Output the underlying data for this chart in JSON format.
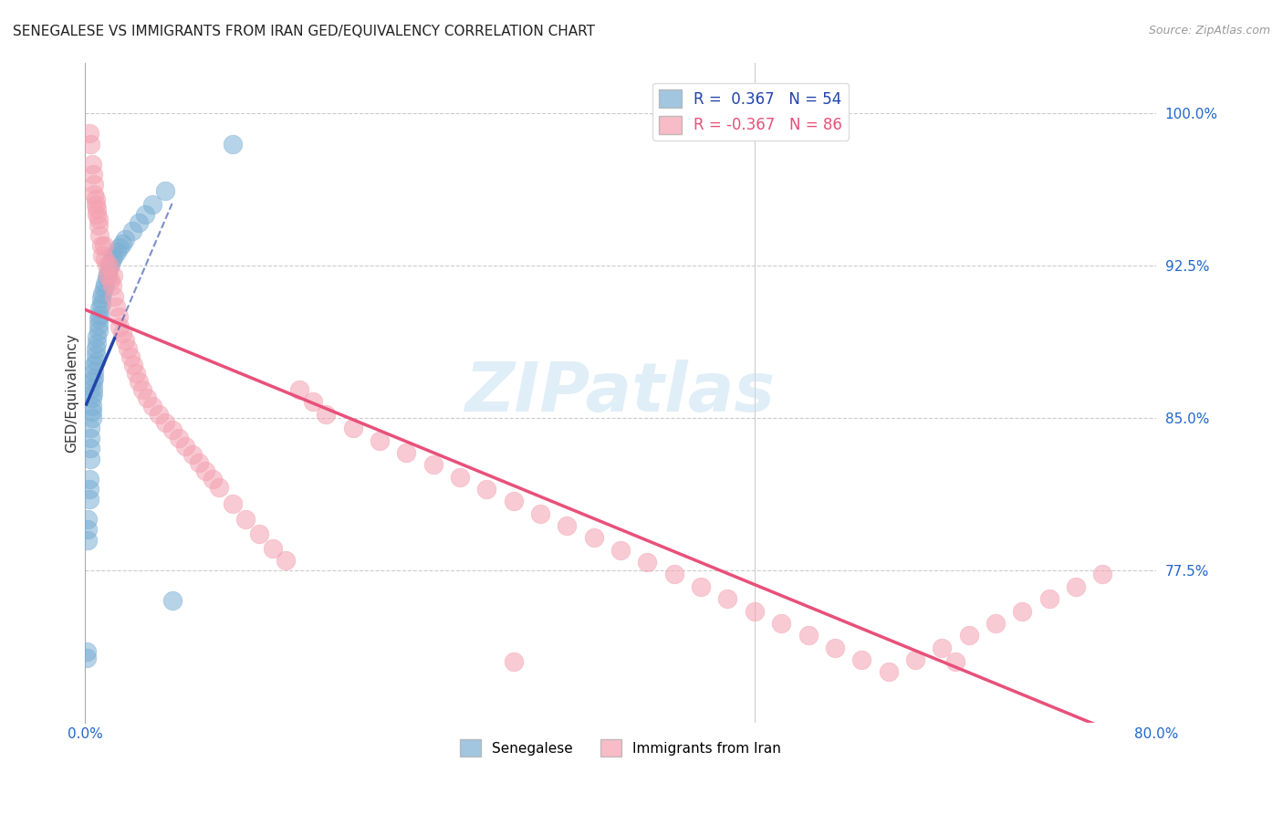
{
  "title": "SENEGALESE VS IMMIGRANTS FROM IRAN GED/EQUIVALENCY CORRELATION CHART",
  "source": "Source: ZipAtlas.com",
  "xlabel_bottom": "Senegalese",
  "xlabel_right_label": "Immigrants from Iran",
  "ylabel": "GED/Equivalency",
  "y_ticks": [
    0.775,
    0.85,
    0.925,
    1.0
  ],
  "y_tick_labels": [
    "77.5%",
    "85.0%",
    "92.5%",
    "100.0%"
  ],
  "x_ticks": [
    0.0,
    0.1,
    0.2,
    0.3,
    0.4,
    0.5,
    0.6,
    0.7,
    0.8
  ],
  "x_tick_labels": [
    "0.0%",
    "",
    "",
    "",
    "",
    "",
    "",
    "",
    "80.0%"
  ],
  "legend_r1": "R =  0.367",
  "legend_n1": "N = 54",
  "legend_r2": "R = -0.367",
  "legend_n2": "N = 86",
  "blue_color": "#7BAFD4",
  "pink_color": "#F4A0B0",
  "blue_line_color": "#2244AA",
  "pink_line_color": "#E8507A",
  "watermark": "ZIPatlas",
  "blue_scatter_x": [
    0.001,
    0.001,
    0.002,
    0.002,
    0.002,
    0.003,
    0.003,
    0.003,
    0.004,
    0.004,
    0.004,
    0.004,
    0.005,
    0.005,
    0.005,
    0.005,
    0.006,
    0.006,
    0.006,
    0.007,
    0.007,
    0.007,
    0.008,
    0.008,
    0.008,
    0.009,
    0.009,
    0.01,
    0.01,
    0.01,
    0.011,
    0.011,
    0.012,
    0.012,
    0.013,
    0.014,
    0.015,
    0.016,
    0.017,
    0.018,
    0.019,
    0.02,
    0.022,
    0.024,
    0.026,
    0.028,
    0.03,
    0.035,
    0.04,
    0.045,
    0.05,
    0.06,
    0.065,
    0.11
  ],
  "blue_scatter_y": [
    0.732,
    0.735,
    0.79,
    0.795,
    0.8,
    0.81,
    0.815,
    0.82,
    0.83,
    0.835,
    0.84,
    0.845,
    0.85,
    0.853,
    0.856,
    0.86,
    0.862,
    0.865,
    0.868,
    0.87,
    0.873,
    0.876,
    0.878,
    0.881,
    0.884,
    0.887,
    0.89,
    0.893,
    0.896,
    0.899,
    0.901,
    0.904,
    0.906,
    0.909,
    0.911,
    0.914,
    0.916,
    0.919,
    0.921,
    0.924,
    0.926,
    0.928,
    0.93,
    0.932,
    0.934,
    0.936,
    0.938,
    0.942,
    0.946,
    0.95,
    0.955,
    0.962,
    0.76,
    0.985
  ],
  "pink_scatter_x": [
    0.003,
    0.004,
    0.005,
    0.006,
    0.007,
    0.007,
    0.008,
    0.008,
    0.009,
    0.009,
    0.01,
    0.01,
    0.011,
    0.012,
    0.013,
    0.014,
    0.015,
    0.016,
    0.017,
    0.018,
    0.019,
    0.02,
    0.021,
    0.022,
    0.023,
    0.025,
    0.026,
    0.028,
    0.03,
    0.032,
    0.034,
    0.036,
    0.038,
    0.04,
    0.043,
    0.046,
    0.05,
    0.055,
    0.06,
    0.065,
    0.07,
    0.075,
    0.08,
    0.085,
    0.09,
    0.095,
    0.1,
    0.11,
    0.12,
    0.13,
    0.14,
    0.15,
    0.16,
    0.17,
    0.18,
    0.2,
    0.22,
    0.24,
    0.26,
    0.28,
    0.3,
    0.32,
    0.34,
    0.36,
    0.38,
    0.4,
    0.42,
    0.44,
    0.46,
    0.48,
    0.5,
    0.52,
    0.54,
    0.56,
    0.58,
    0.6,
    0.62,
    0.64,
    0.66,
    0.68,
    0.7,
    0.72,
    0.74,
    0.76,
    0.65,
    0.32
  ],
  "pink_scatter_y": [
    0.99,
    0.985,
    0.975,
    0.97,
    0.965,
    0.96,
    0.955,
    0.958,
    0.95,
    0.953,
    0.945,
    0.948,
    0.94,
    0.935,
    0.93,
    0.935,
    0.928,
    0.925,
    0.92,
    0.925,
    0.918,
    0.915,
    0.92,
    0.91,
    0.905,
    0.9,
    0.895,
    0.892,
    0.888,
    0.884,
    0.88,
    0.876,
    0.872,
    0.868,
    0.864,
    0.86,
    0.856,
    0.852,
    0.848,
    0.844,
    0.84,
    0.836,
    0.832,
    0.828,
    0.824,
    0.82,
    0.816,
    0.808,
    0.8,
    0.793,
    0.786,
    0.78,
    0.864,
    0.858,
    0.852,
    0.845,
    0.839,
    0.833,
    0.827,
    0.821,
    0.815,
    0.809,
    0.803,
    0.797,
    0.791,
    0.785,
    0.779,
    0.773,
    0.767,
    0.761,
    0.755,
    0.749,
    0.743,
    0.737,
    0.731,
    0.725,
    0.731,
    0.737,
    0.743,
    0.749,
    0.755,
    0.761,
    0.767,
    0.773,
    0.73,
    0.73
  ]
}
